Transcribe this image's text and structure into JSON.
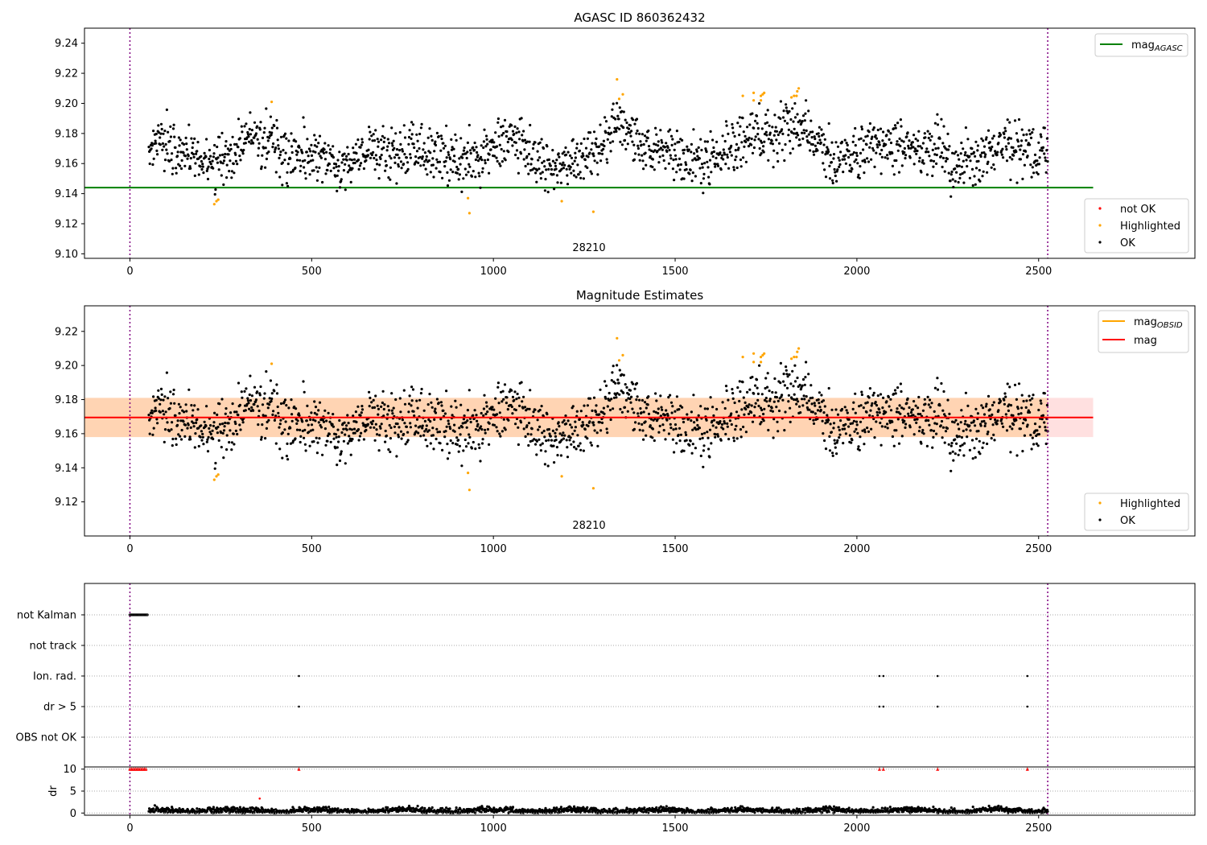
{
  "chart_data": [
    {
      "type": "scatter",
      "title": "AGASC ID 860362432",
      "xlim": [
        -125,
        2930
      ],
      "ylim": [
        9.097,
        9.25
      ],
      "xticks": [
        "0",
        "500",
        "1000",
        "1500",
        "2000",
        "2500"
      ],
      "yticks": [
        "9.10",
        "9.12",
        "9.14",
        "9.16",
        "9.18",
        "9.20",
        "9.22",
        "9.24"
      ],
      "obsid_label": "28210",
      "obsid_boundaries": [
        0,
        2525
      ],
      "mag_agasc": 9.144,
      "mag_agasc_xrange": [
        -125,
        2650
      ],
      "series": [
        {
          "name": "not OK",
          "color": "#ff0000",
          "points": []
        },
        {
          "name": "Highlighted",
          "color": "#ffa500",
          "points": [
            [
              232,
              9.133
            ],
            [
              238,
              9.135
            ],
            [
              243,
              9.136
            ],
            [
              390,
              9.201
            ],
            [
              930,
              9.137
            ],
            [
              934,
              9.127
            ],
            [
              1188,
              9.135
            ],
            [
              1275,
              9.128
            ],
            [
              1340,
              9.216
            ],
            [
              1346,
              9.203
            ],
            [
              1356,
              9.206
            ],
            [
              1686,
              9.205
            ],
            [
              1716,
              9.207
            ],
            [
              1716,
              9.202
            ],
            [
              1736,
              9.205
            ],
            [
              1736,
              9.202
            ],
            [
              1741,
              9.206
            ],
            [
              1745,
              9.207
            ],
            [
              1820,
              9.204
            ],
            [
              1827,
              9.205
            ],
            [
              1834,
              9.205
            ],
            [
              1836,
              9.208
            ],
            [
              1840,
              9.21
            ]
          ]
        },
        {
          "name": "OK",
          "color": "#000000",
          "points": "generated: ~1800 per-frame magnitude estimates, x 50-2525, mostly 9.14-9.20"
        }
      ],
      "legend": [
        {
          "position": "top-right",
          "entries": [
            {
              "label": "mag",
              "sub": "AGASC",
              "kind": "line",
              "color": "#008000"
            }
          ]
        },
        {
          "position": "lower-right",
          "entries": [
            {
              "label": "not OK",
              "kind": "dot",
              "color": "#ff0000"
            },
            {
              "label": "Highlighted",
              "kind": "dot",
              "color": "#ffa500"
            },
            {
              "label": "OK",
              "kind": "dot",
              "color": "#000000"
            }
          ]
        }
      ]
    },
    {
      "type": "scatter",
      "title": "Magnitude Estimates",
      "xlim": [
        -125,
        2930
      ],
      "ylim": [
        9.1,
        9.235
      ],
      "xticks": [
        "0",
        "500",
        "1000",
        "1500",
        "2000",
        "2500"
      ],
      "yticks": [
        "9.12",
        "9.14",
        "9.16",
        "9.18",
        "9.20",
        "9.22"
      ],
      "obsid_label": "28210",
      "mag": 9.1695,
      "mag_band": [
        9.158,
        9.181
      ],
      "mag_obsid_band": [
        9.158,
        9.181
      ],
      "band_xrange": [
        -125,
        2650
      ],
      "series": [
        {
          "name": "Highlighted",
          "color": "#ffa500",
          "points": "same as panel 1"
        },
        {
          "name": "OK",
          "color": "#000000",
          "points": "same as panel 1"
        }
      ],
      "legend": [
        {
          "position": "top-right",
          "entries": [
            {
              "label": "mag",
              "sub": "OBSID",
              "kind": "line",
              "color": "#ffa500"
            },
            {
              "label": "mag",
              "kind": "line",
              "color": "#ff0000"
            }
          ]
        },
        {
          "position": "lower-right",
          "entries": [
            {
              "label": "Highlighted",
              "kind": "dot",
              "color": "#ffa500"
            },
            {
              "label": "OK",
              "kind": "dot",
              "color": "#000000"
            }
          ]
        }
      ]
    },
    {
      "type": "scatter",
      "title": "",
      "xlim": [
        -125,
        2930
      ],
      "flag_labels": [
        "not Kalman",
        "not track",
        "Ion. rad.",
        "dr > 5",
        "OBS not OK"
      ],
      "flags": {
        "not Kalman": {
          "x_range": [
            0,
            48
          ],
          "step": 2
        },
        "not track": [],
        "Ion. rad.": [
          465,
          2062,
          2073,
          2222,
          2469
        ],
        "dr > 5": [
          465,
          2062,
          2073,
          2222,
          2469
        ],
        "OBS not OK": []
      },
      "dr_axis": {
        "ylabel": "dr",
        "yticks": [
          "0",
          "5",
          "10"
        ],
        "ylim": [
          -0.5,
          10.5
        ]
      },
      "dr_clipped_markers": {
        "x": [
          0,
          4,
          8,
          12,
          16,
          20,
          24,
          28,
          32,
          36,
          40,
          44,
          465,
          2062,
          2073,
          2222,
          2469
        ],
        "value": 10
      },
      "dr_outlier": [
        [
          357,
          3.3
        ]
      ],
      "xticks": [
        "0",
        "500",
        "1000",
        "1500",
        "2000",
        "2500"
      ]
    }
  ]
}
